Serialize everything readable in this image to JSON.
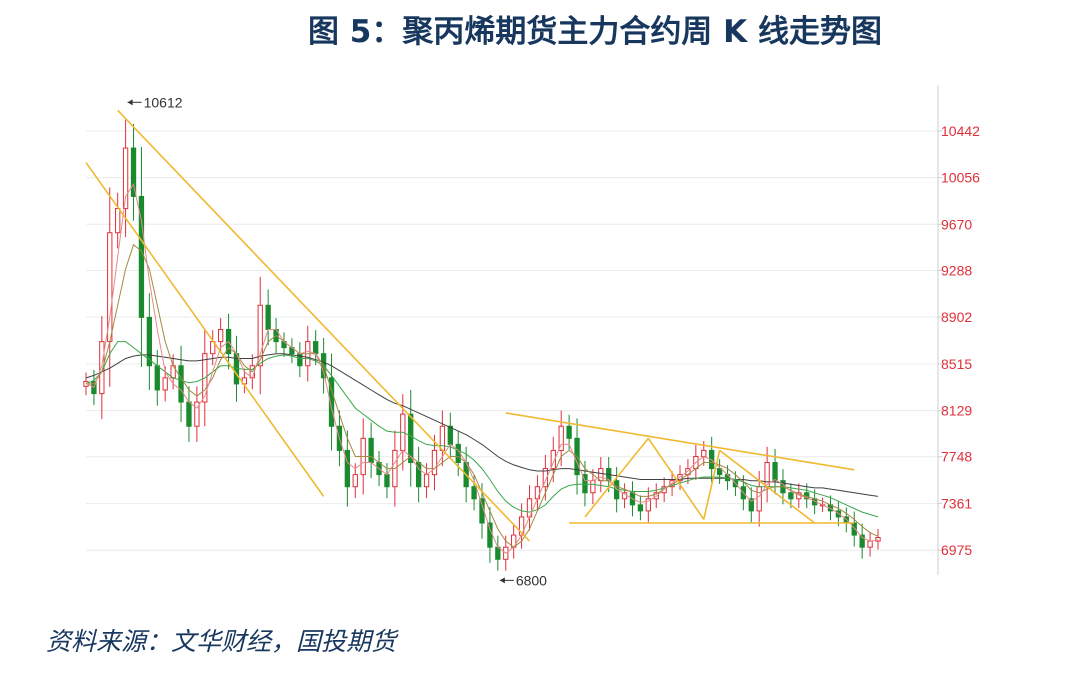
{
  "title": "图 5：聚丙烯期货主力合约周 K 线走势图",
  "source": "资料来源：文华财经，国投期货",
  "colors": {
    "up": "#e0303a",
    "down": "#1a8a2e",
    "ma_black": "#404040",
    "ma_red": "#e58a8a",
    "ma_green": "#3aa84a",
    "ma_olive": "#a08a40",
    "trendline": "#f0b930",
    "axis_text": "#e0303a"
  },
  "chart_data": {
    "type": "candlestick",
    "title": "",
    "xlabel": "",
    "ylabel": "",
    "ylim": [
      6770,
      10780
    ],
    "y_ticks": [
      10442,
      10056,
      9670,
      9288,
      8902,
      8515,
      8129,
      7748,
      7361,
      6975
    ],
    "grid": true,
    "annotations": [
      {
        "text": "10612",
        "type": "high"
      },
      {
        "text": "6800",
        "type": "low"
      }
    ],
    "closes": [
      8370,
      8270,
      8700,
      9600,
      9800,
      10300,
      9900,
      8900,
      8500,
      8300,
      8400,
      8500,
      8200,
      8000,
      8200,
      8600,
      8700,
      8800,
      8600,
      8350,
      8400,
      8500,
      9000,
      8800,
      8700,
      8650,
      8600,
      8500,
      8700,
      8600,
      8400,
      8000,
      7800,
      7500,
      7600,
      7900,
      7700,
      7600,
      7500,
      7800,
      8100,
      7700,
      7500,
      7600,
      7800,
      8000,
      7850,
      7700,
      7500,
      7400,
      7200,
      7000,
      6900,
      7000,
      7100,
      7250,
      7400,
      7500,
      7650,
      7800,
      8000,
      7900,
      7600,
      7450,
      7550,
      7650,
      7550,
      7400,
      7450,
      7350,
      7300,
      7400,
      7450,
      7500,
      7550,
      7600,
      7650,
      7750,
      7800,
      7650,
      7600,
      7550,
      7500,
      7400,
      7300,
      7500,
      7700,
      7550,
      7450,
      7400,
      7450,
      7400,
      7350,
      7350,
      7300,
      7250,
      7200,
      7100,
      7000,
      7050,
      7080
    ],
    "moving_averages": [
      {
        "color": "#404040",
        "values": [
          8400,
          8420,
          8450,
          8480,
          8520,
          8560,
          8580,
          8590,
          8590,
          8580,
          8570,
          8560,
          8550,
          8540,
          8540,
          8550,
          8560,
          8570,
          8570,
          8560,
          8560,
          8560,
          8580,
          8590,
          8600,
          8600,
          8590,
          8580,
          8570,
          8550,
          8530,
          8500,
          8460,
          8420,
          8380,
          8340,
          8300,
          8260,
          8220,
          8190,
          8170,
          8140,
          8110,
          8080,
          8050,
          8020,
          7990,
          7960,
          7930,
          7890,
          7850,
          7800,
          7750,
          7710,
          7680,
          7660,
          7640,
          7630,
          7630,
          7640,
          7650,
          7650,
          7640,
          7630,
          7620,
          7610,
          7600,
          7590,
          7580,
          7570,
          7560,
          7560,
          7560,
          7560,
          7560,
          7560,
          7570,
          7570,
          7570,
          7570,
          7570,
          7570,
          7560,
          7560,
          7550,
          7550,
          7540,
          7540,
          7530,
          7520,
          7510,
          7500,
          7490,
          7490,
          7480,
          7470,
          7460,
          7450,
          7440,
          7430,
          7420
        ]
      },
      {
        "color": "#3aa84a",
        "values": [
          8350,
          8380,
          8450,
          8600,
          8700,
          8700,
          8650,
          8600,
          8550,
          8500,
          8450,
          8400,
          8380,
          8360,
          8370,
          8400,
          8450,
          8500,
          8500,
          8480,
          8470,
          8470,
          8520,
          8560,
          8580,
          8590,
          8580,
          8560,
          8560,
          8540,
          8500,
          8420,
          8330,
          8240,
          8150,
          8100,
          8050,
          8000,
          7960,
          7950,
          7950,
          7920,
          7880,
          7850,
          7840,
          7840,
          7830,
          7800,
          7770,
          7720,
          7650,
          7560,
          7460,
          7380,
          7330,
          7300,
          7290,
          7310,
          7350,
          7420,
          7480,
          7510,
          7520,
          7520,
          7520,
          7510,
          7500,
          7480,
          7470,
          7460,
          7460,
          7460,
          7470,
          7490,
          7510,
          7530,
          7550,
          7570,
          7580,
          7580,
          7580,
          7570,
          7560,
          7540,
          7510,
          7500,
          7500,
          7500,
          7500,
          7490,
          7480,
          7470,
          7450,
          7430,
          7410,
          7380,
          7350,
          7320,
          7290,
          7270,
          7250
        ]
      },
      {
        "color": "#a08a40",
        "values": [
          8350,
          8350,
          8450,
          8700,
          9000,
          9300,
          9500,
          9450,
          9300,
          9000,
          8700,
          8500,
          8400,
          8300,
          8250,
          8300,
          8400,
          8550,
          8650,
          8600,
          8500,
          8450,
          8550,
          8700,
          8750,
          8700,
          8650,
          8600,
          8600,
          8600,
          8500,
          8300,
          8100,
          7900,
          7750,
          7750,
          7750,
          7700,
          7650,
          7650,
          7700,
          7750,
          7700,
          7650,
          7650,
          7700,
          7750,
          7750,
          7700,
          7600,
          7450,
          7300,
          7150,
          7050,
          7000,
          7050,
          7150,
          7300,
          7450,
          7600,
          7750,
          7800,
          7750,
          7650,
          7600,
          7550,
          7550,
          7500,
          7480,
          7450,
          7420,
          7420,
          7440,
          7480,
          7520,
          7560,
          7600,
          7650,
          7700,
          7700,
          7680,
          7650,
          7600,
          7540,
          7470,
          7450,
          7480,
          7500,
          7500,
          7470,
          7440,
          7420,
          7400,
          7380,
          7350,
          7320,
          7280,
          7230,
          7170,
          7120,
          7090
        ]
      },
      {
        "color": "#e58a8a",
        "values": [
          8360,
          8320,
          8500,
          8900,
          9400,
          9900,
          10000,
          9700,
          9200,
          8800,
          8450,
          8350,
          8300,
          8200,
          8150,
          8250,
          8450,
          8650,
          8700,
          8600,
          8450,
          8400,
          8600,
          8800,
          8800,
          8700,
          8650,
          8600,
          8620,
          8600,
          8450,
          8150,
          7900,
          7700,
          7650,
          7700,
          7700,
          7650,
          7600,
          7700,
          7800,
          7750,
          7650,
          7600,
          7650,
          7750,
          7850,
          7800,
          7700,
          7550,
          7350,
          7150,
          7000,
          6950,
          7000,
          7100,
          7250,
          7400,
          7550,
          7700,
          7850,
          7850,
          7700,
          7550,
          7550,
          7580,
          7560,
          7480,
          7440,
          7400,
          7370,
          7380,
          7420,
          7480,
          7530,
          7580,
          7630,
          7700,
          7750,
          7720,
          7660,
          7600,
          7530,
          7450,
          7380,
          7420,
          7520,
          7560,
          7520,
          7460,
          7430,
          7410,
          7380,
          7350,
          7320,
          7280,
          7230,
          7160,
          7080,
          7050,
          7060
        ]
      }
    ],
    "trendlines": [
      {
        "from": [
          0,
          10180
        ],
        "to": [
          30,
          7420
        ]
      },
      {
        "from": [
          4,
          10612
        ],
        "to": [
          56,
          7050
        ]
      },
      {
        "from": [
          53,
          8110
        ],
        "to": [
          97,
          7640
        ]
      },
      {
        "from": [
          61,
          7200
        ],
        "to": [
          97,
          7200
        ]
      },
      {
        "from": [
          63,
          7250
        ],
        "to": [
          71,
          7900
        ]
      },
      {
        "from": [
          71,
          7900
        ],
        "to": [
          78,
          7230
        ]
      },
      {
        "from": [
          78,
          7230
        ],
        "to": [
          80,
          7800
        ]
      },
      {
        "from": [
          80,
          7800
        ],
        "to": [
          92,
          7200
        ]
      }
    ]
  }
}
